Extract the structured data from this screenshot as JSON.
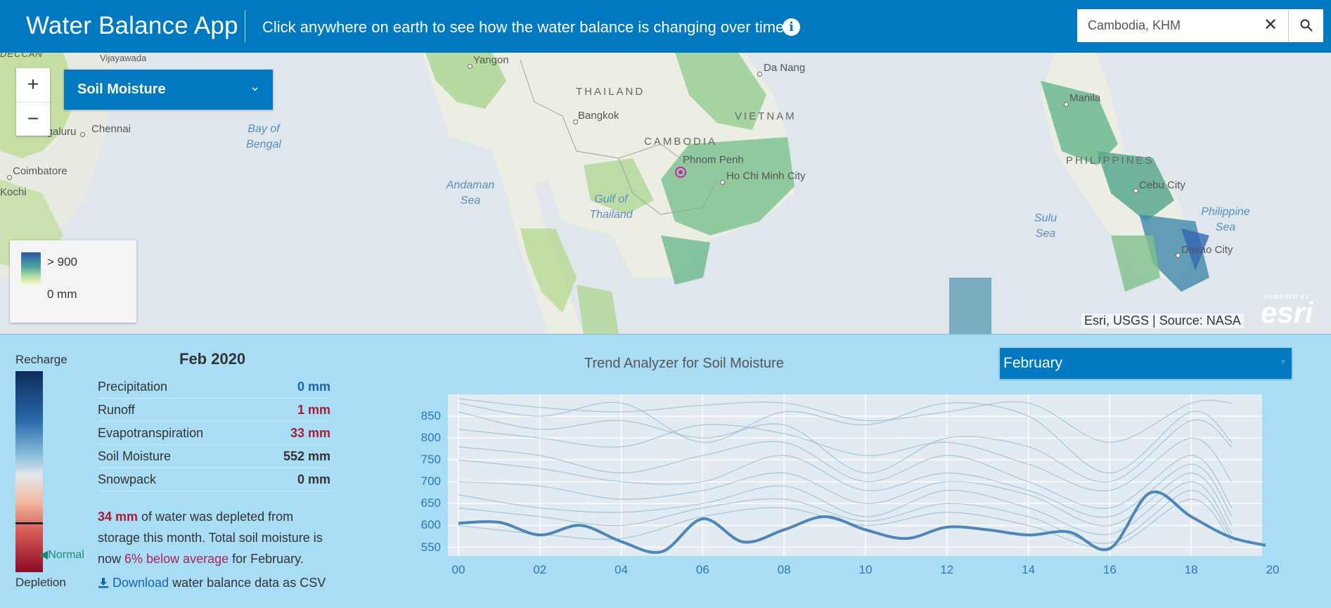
{
  "header": {
    "app_title": "Water Balance App",
    "subtitle": "Click anywhere on earth to see how the water balance is changing over time",
    "search_value": "Cambodia, KHM"
  },
  "map": {
    "layer_label": "Soil Moisture",
    "legend_high": "> 900",
    "legend_low": "0 mm",
    "attribution": "Esri, USGS | Source: NASA",
    "logo_powered": "POWERED BY",
    "logo_name": "esri",
    "labels": {
      "deccan": "DECCAN",
      "vijayawada": "Vijayawada",
      "yangon": "Yangon",
      "thailand": "THAILAND",
      "da_nang": "Da Nang",
      "vietnam": "VIETNAM",
      "manila": "Manila",
      "bangkok": "Bangkok",
      "bengaluru": "Bengaluru",
      "chennai": "Chennai",
      "bay_of_bengal_1": "Bay of",
      "bay_of_bengal_2": "Bengal",
      "cambodia": "CAMBODIA",
      "phnom_penh": "Phnom Penh",
      "hcmc": "Ho Chi Minh City",
      "philippines": "PHILIPPINES",
      "coimbatore": "Coimbatore",
      "andaman_1": "Andaman",
      "andaman_2": "Sea",
      "gulf_1": "Gulf of",
      "gulf_2": "Thailand",
      "cebu": "Cebu City",
      "kochi": "Kochi",
      "sulu_1": "Sulu",
      "sulu_2": "Sea",
      "philippine_sea_1": "Philippine",
      "philippine_sea_2": "Sea",
      "davao": "Davao City"
    }
  },
  "balance": {
    "recharge_label": "Recharge",
    "depletion_label": "Depletion",
    "normal_label": "Normal",
    "month_title": "Feb 2020",
    "stats": [
      {
        "name": "Precipitation",
        "value": "0 mm"
      },
      {
        "name": "Runoff",
        "value": "1 mm"
      },
      {
        "name": "Evapotranspiration",
        "value": "33 mm"
      },
      {
        "name": "Soil Moisture",
        "value": "552 mm"
      },
      {
        "name": "Snowpack",
        "value": "0 mm"
      }
    ],
    "summary_amount": "34 mm",
    "summary_text_1": " of water was depleted from storage this month. Total soil moisture is now ",
    "summary_pct": "6% below average",
    "summary_text_2": " for February.",
    "download_link": "Download",
    "download_text": " water balance data as CSV"
  },
  "trend": {
    "title": "Trend Analyzer for Soil Moisture",
    "month_select": "February"
  },
  "chart_data": {
    "type": "line",
    "title": "Trend Analyzer for Soil Moisture",
    "xlabel": "",
    "ylabel": "",
    "x_ticks": [
      "00",
      "02",
      "04",
      "06",
      "08",
      "10",
      "12",
      "14",
      "16",
      "18",
      "20"
    ],
    "y_ticks": [
      550,
      600,
      650,
      700,
      750,
      800,
      850
    ],
    "xlim": [
      0,
      20
    ],
    "ylim": [
      530,
      900
    ],
    "grid": true,
    "highlight_color": "#4d86b8",
    "background_color": "#e1ebf1",
    "series": [
      {
        "x": [
          0,
          1,
          2,
          3,
          4,
          5,
          6,
          7,
          8,
          9,
          10,
          11,
          12,
          13,
          14,
          15,
          16,
          17,
          18,
          19,
          20
        ],
        "values": [
          605,
          607,
          578,
          600,
          563,
          540,
          615,
          562,
          590,
          620,
          590,
          570,
          596,
          590,
          578,
          585,
          547,
          675,
          620,
          572,
          552
        ]
      }
    ],
    "background_series": [
      {
        "x": [
          0,
          2,
          4,
          6,
          8,
          10,
          12,
          14,
          16,
          18,
          19
        ],
        "values": [
          890,
          870,
          860,
          875,
          880,
          840,
          860,
          880,
          790,
          880,
          880
        ]
      },
      {
        "x": [
          0,
          2,
          4,
          6,
          8,
          10,
          12,
          14,
          16,
          18,
          19
        ],
        "values": [
          880,
          850,
          880,
          790,
          860,
          830,
          880,
          850,
          720,
          860,
          790
        ]
      },
      {
        "x": [
          0,
          2,
          4,
          6,
          8,
          10,
          12,
          14,
          16,
          18,
          19
        ],
        "values": [
          860,
          820,
          840,
          800,
          830,
          720,
          800,
          780,
          700,
          840,
          780
        ]
      },
      {
        "x": [
          0,
          2,
          4,
          6,
          8,
          10,
          12,
          14,
          16,
          18,
          19
        ],
        "values": [
          820,
          800,
          780,
          830,
          810,
          760,
          790,
          740,
          680,
          800,
          700
        ]
      },
      {
        "x": [
          0,
          2,
          4,
          6,
          8,
          10,
          12,
          14,
          16,
          18,
          19
        ],
        "values": [
          780,
          760,
          720,
          760,
          790,
          700,
          760,
          700,
          640,
          760,
          640
        ]
      },
      {
        "x": [
          0,
          2,
          4,
          6,
          8,
          10,
          12,
          14,
          16,
          18,
          19
        ],
        "values": [
          750,
          730,
          700,
          700,
          760,
          680,
          720,
          680,
          620,
          740,
          620
        ]
      },
      {
        "x": [
          0,
          2,
          4,
          6,
          8,
          10,
          12,
          14,
          16,
          18,
          19
        ],
        "values": [
          700,
          690,
          660,
          680,
          720,
          650,
          700,
          670,
          600,
          720,
          600
        ]
      },
      {
        "x": [
          0,
          2,
          4,
          6,
          8,
          10,
          12,
          14,
          16,
          18,
          19
        ],
        "values": [
          670,
          640,
          630,
          650,
          690,
          620,
          680,
          640,
          580,
          700,
          580
        ]
      },
      {
        "x": [
          0,
          2,
          4,
          6,
          8,
          10,
          12,
          14,
          16,
          18,
          19
        ],
        "values": [
          640,
          620,
          600,
          640,
          660,
          610,
          650,
          620,
          560,
          680,
          570
        ]
      },
      {
        "x": [
          0,
          2,
          4,
          6,
          8,
          10,
          12,
          14,
          16,
          18,
          19
        ],
        "values": [
          600,
          580,
          570,
          620,
          640,
          600,
          630,
          600,
          550,
          660,
          560
        ]
      }
    ]
  }
}
